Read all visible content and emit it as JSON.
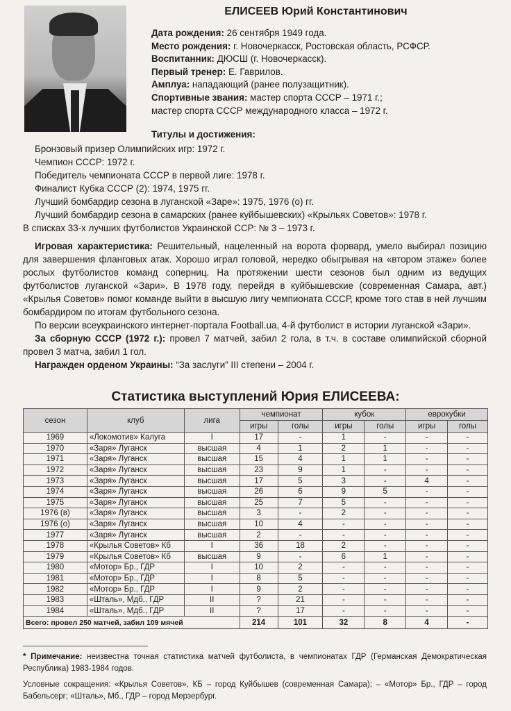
{
  "header": {
    "title": "ЕЛИСЕЕВ Юрий Константинович"
  },
  "info": [
    {
      "label": "Дата рождения:",
      "value": " 26 сентября 1949 года."
    },
    {
      "label": "Место рождения:",
      "value": " г. Новочеркасск, Ростовская область, РСФСР."
    },
    {
      "label": "Воспитанник:",
      "value": " ДЮСШ (г. Новочеркасск)."
    },
    {
      "label": "Первый тренер:",
      "value": " Е. Гаврилов."
    },
    {
      "label": "Амплуа:",
      "value": " нападающий (ранее полузащитник)."
    },
    {
      "label": "Спортивные звания:",
      "value": " мастер спорта СССР – 1971 г.;"
    }
  ],
  "info_continuation": "мастер спорта СССР международного класса – 1972 г.",
  "titles": {
    "heading": "Титулы и достижения:",
    "items": [
      "Бронзовый призер Олимпийских игр: 1972 г.",
      "Чемпион СССР: 1972 г.",
      "Победитель чемпионата СССР в первой лиге: 1978 г.",
      "Финалист Кубка СССР (2): 1974, 1975 гг.",
      "Лучший бомбардир сезона в луганской «Заре»: 1975, 1976 (о) гг.",
      "Лучший бомбардир сезона в самарских (ранее куйбышевских) «Крыльях Советов»: 1978 г."
    ],
    "ranking": "В списках 33-х лучших футболистов Украинской ССР: № 3 – 1973 г."
  },
  "paragraphs": [
    {
      "label": "Игровая характеристика:",
      "text": " Решительный, нацеленный на ворота форвард, умело выбирал позицию для завершения фланговых атак. Хорошо играл головой, нередко обыгрывая на «втором этаже» более рослых футболистов команд соперниц. На протяжении шести сезонов был одним из ведущих футболистов луганской «Зари». В 1978 году, перейдя в куйбышевские (современная Самара, авт.) «Крылья Советов» помог команде выйти в высшую лигу чемпионата СССР, кроме того став в ней лучшим бомбардиром по итогам футбольного сезона."
    },
    {
      "label": "",
      "text": "По версии всеукраинского интернет-портала Football.ua, 4-й футболист в истории луганской «Зари»."
    },
    {
      "label": "За сборную СССР (1972 г.):",
      "text": " провел 7 матчей, забил 2 гола, в т.ч. в составе олимпийской сборной провел 3 матча, забил 1 гол."
    },
    {
      "label": "Награжден орденом Украины:",
      "text": " “За заслуги” III степени – 2004 г."
    }
  ],
  "table": {
    "title": "Статистика выступлений Юрия ЕЛИСЕЕВА:",
    "header_top": [
      "сезон",
      "клуб",
      "лига",
      "чемпионат",
      "кубок",
      "еврокубки"
    ],
    "header_sub": [
      "игры",
      "голы",
      "игры",
      "голы",
      "игры",
      "голы"
    ],
    "rows": [
      [
        "1969",
        "«Локомотив» Калуга",
        "I",
        "17",
        "-",
        "1",
        "-",
        "-",
        "-"
      ],
      [
        "1970",
        "«Заря» Луганск",
        "высшая",
        "4",
        "1",
        "2",
        "1",
        "-",
        "-"
      ],
      [
        "1971",
        "«Заря» Луганск",
        "высшая",
        "15",
        "4",
        "1",
        "1",
        "-",
        "-"
      ],
      [
        "1972",
        "«Заря» Луганск",
        "высшая",
        "23",
        "9",
        "1",
        "-",
        "-",
        "-"
      ],
      [
        "1973",
        "«Заря» Луганск",
        "высшая",
        "17",
        "5",
        "3",
        "-",
        "4",
        "-"
      ],
      [
        "1974",
        "«Заря» Луганск",
        "высшая",
        "26",
        "6",
        "9",
        "5",
        "-",
        "-"
      ],
      [
        "1975",
        "«Заря» Луганск",
        "высшая",
        "25",
        "7",
        "5",
        "-",
        "-",
        "-"
      ],
      [
        "1976 (в)",
        "«Заря» Луганск",
        "высшая",
        "3",
        "-",
        "2",
        "-",
        "-",
        "-"
      ],
      [
        "1976 (о)",
        "«Заря» Луганск",
        "высшая",
        "10",
        "4",
        "-",
        "-",
        "-",
        "-"
      ],
      [
        "1977",
        "«Заря» Луганск",
        "высшая",
        "2",
        "-",
        "-",
        "-",
        "-",
        "-"
      ],
      [
        "1978",
        "«Крылья Советов» Кб",
        "I",
        "36",
        "18",
        "2",
        "-",
        "-",
        "-"
      ],
      [
        "1979",
        "«Крылья Советов» Кб",
        "высшая",
        "9",
        "-",
        "6",
        "1",
        "-",
        "-"
      ],
      [
        "1980",
        "«Мотор» Бр., ГДР",
        "I",
        "10",
        "2",
        "-",
        "-",
        "-",
        "-"
      ],
      [
        "1981",
        "«Мотор» Бр., ГДР",
        "I",
        "8",
        "5",
        "-",
        "-",
        "-",
        "-"
      ],
      [
        "1982",
        "«Мотор» Бр., ГДР",
        "I",
        "9",
        "2",
        "-",
        "-",
        "-",
        "-"
      ],
      [
        "1983",
        "«Шталь», Мдб., ГДР",
        "II",
        "?",
        "21",
        "-",
        "-",
        "-",
        "-"
      ],
      [
        "1984",
        "«Шталь», Мдб., ГДР",
        "II",
        "?",
        "17",
        "-",
        "-",
        "-",
        "-"
      ]
    ],
    "total": [
      "Всего: провел 250 матчей, забил 109 мячей",
      "214",
      "101",
      "32",
      "8",
      "4",
      "-"
    ]
  },
  "notes": {
    "note_label": "* Примечание:",
    "note_text": " неизвестна точная статистика матчей футболиста, в чемпионатах ГДР (Германская Демократическая Республика) 1983-1984 годов.",
    "abbreviations": "Условные сокращения: «Крылья Советов», КБ – город Куйбышев (современная Самара); – «Мотор» Бр., ГДР – город Бабельсерг; «Шталь», Мб., ГДР – город Мерзербург."
  }
}
